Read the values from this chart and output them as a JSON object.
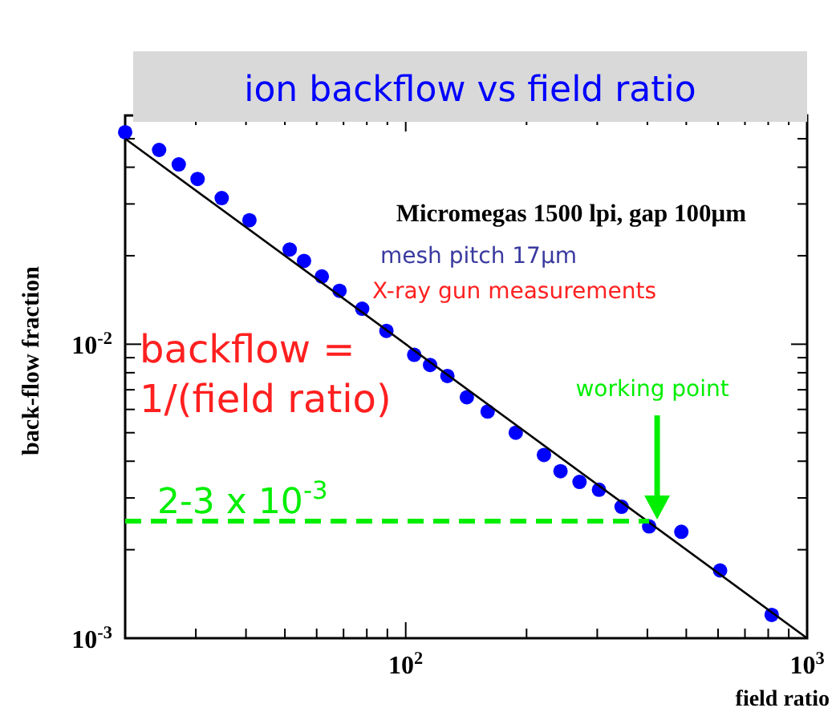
{
  "chart_data": {
    "type": "scatter",
    "title": "ion backflow vs field ratio",
    "xlabel": "field ratio",
    "ylabel": "back-flow fraction",
    "log": "xy",
    "grid": false,
    "xlim": [
      20,
      1000
    ],
    "ylim": [
      0.001,
      0.06
    ],
    "xticks": [
      {
        "value": 30,
        "label": null
      },
      {
        "value": 40,
        "label": null
      },
      {
        "value": 50,
        "label": null
      },
      {
        "value": 60,
        "label": null
      },
      {
        "value": 70,
        "label": null
      },
      {
        "value": 80,
        "label": null
      },
      {
        "value": 90,
        "label": null
      },
      {
        "value": 100,
        "label": "10$^{2}$"
      },
      {
        "value": 200,
        "label": null
      },
      {
        "value": 300,
        "label": null
      },
      {
        "value": 400,
        "label": null
      },
      {
        "value": 500,
        "label": null
      },
      {
        "value": 600,
        "label": null
      },
      {
        "value": 700,
        "label": null
      },
      {
        "value": 800,
        "label": null
      },
      {
        "value": 900,
        "label": null
      },
      {
        "value": 1000,
        "label": "10$^{3}$"
      }
    ],
    "yticks": [
      {
        "value": 0.001,
        "label": "10$^{-3}$"
      },
      {
        "value": 0.002,
        "label": null
      },
      {
        "value": 0.003,
        "label": null
      },
      {
        "value": 0.004,
        "label": null
      },
      {
        "value": 0.005,
        "label": null
      },
      {
        "value": 0.006,
        "label": null
      },
      {
        "value": 0.007,
        "label": null
      },
      {
        "value": 0.008,
        "label": null
      },
      {
        "value": 0.009,
        "label": null
      },
      {
        "value": 0.01,
        "label": "10$^{-2}$"
      },
      {
        "value": 0.02,
        "label": null
      },
      {
        "value": 0.03,
        "label": null
      },
      {
        "value": 0.04,
        "label": null
      },
      {
        "value": 0.05,
        "label": null
      }
    ],
    "series": [
      {
        "marker": "circle",
        "color": "#0000ff",
        "x": [
          20,
          24.3,
          27.2,
          30.3,
          34.8,
          40.8,
          51.4,
          55.8,
          61.8,
          68.4,
          77.9,
          89.5,
          105,
          115,
          127,
          142,
          160,
          188,
          221,
          243,
          271,
          303,
          345,
          404,
          486,
          607,
          816
        ],
        "values": [
          0.0526,
          0.0458,
          0.0409,
          0.0365,
          0.0314,
          0.0264,
          0.021,
          0.0192,
          0.017,
          0.0152,
          0.0132,
          0.0111,
          0.0092,
          0.0085,
          0.0078,
          0.0066,
          0.0059,
          0.005,
          0.0042,
          0.0037,
          0.0034,
          0.0032,
          0.0028,
          0.0024,
          0.0023,
          0.0017,
          0.0012
        ]
      },
      {
        "type": "line",
        "color": "#000000",
        "line_style": "solid",
        "x": [
          20,
          1000
        ],
        "values": [
          0.05,
          0.001
        ]
      },
      {
        "type": "line",
        "color": "#00ee00",
        "line_style": "dashed",
        "x": [
          20,
          404
        ],
        "values": [
          0.0025,
          0.0025
        ]
      }
    ],
    "annotations": [
      "Micromegas 1500 lpi, gap 100μm",
      "mesh pitch 17μm",
      "X-ray gun measurements",
      "backflow =\n1/(field ratio)",
      "working point",
      {
        "text": "2-3 x 10$^{-3}$",
        "x": 20,
        "y": 0.0025
      }
    ]
  }
}
